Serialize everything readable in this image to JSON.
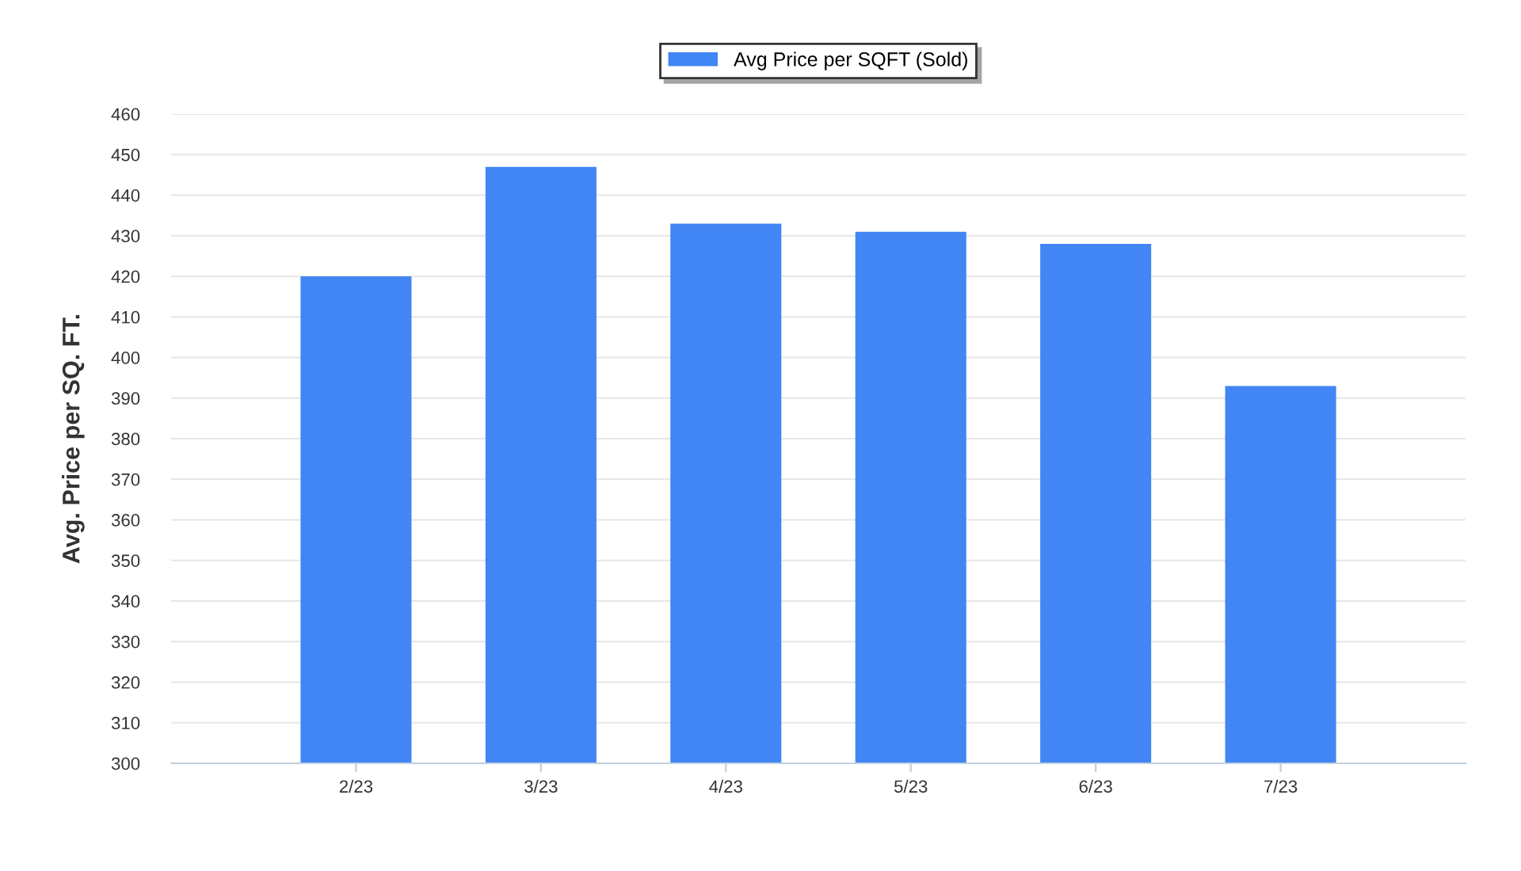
{
  "chart_data": {
    "type": "bar",
    "ylabel": "Avg. Price per SQ. FT.",
    "categories": [
      "2/23",
      "3/23",
      "4/23",
      "5/23",
      "6/23",
      "7/23"
    ],
    "series": [
      {
        "name": "Avg Price per SQFT (Sold)",
        "color": "#4285f4",
        "values": [
          420,
          447,
          433,
          431,
          428,
          393
        ]
      }
    ],
    "ylim": [
      300,
      460
    ],
    "yticks": [
      300,
      310,
      320,
      330,
      340,
      350,
      360,
      370,
      380,
      390,
      400,
      410,
      420,
      430,
      440,
      450,
      460
    ],
    "grid": "y",
    "legend": "top"
  }
}
